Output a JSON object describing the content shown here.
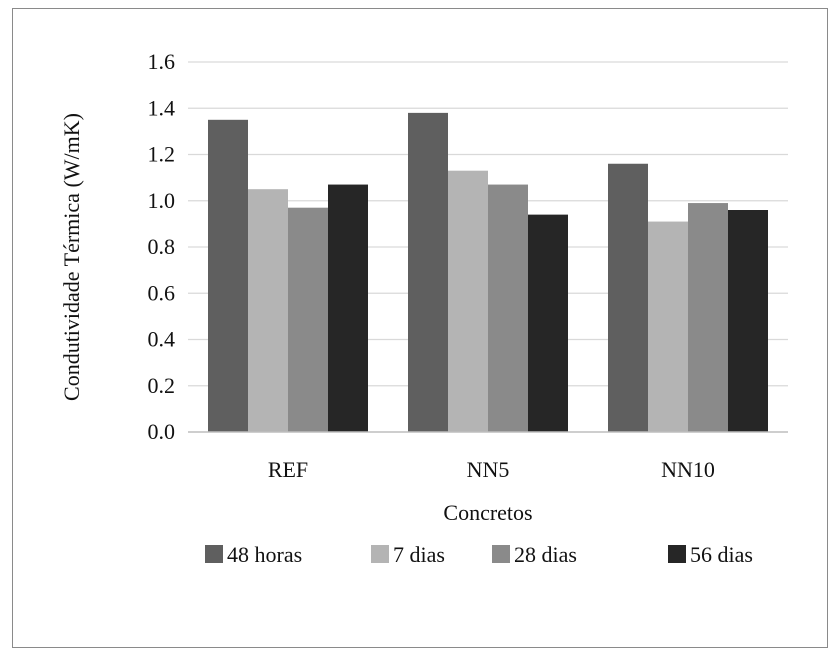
{
  "chart_data": {
    "type": "bar",
    "title": "",
    "xlabel": "Concretos",
    "ylabel": "Condutividade Térmica (W/mK)",
    "ylim": [
      0,
      1.6
    ],
    "yticks": [
      "0.0",
      "0.2",
      "0.4",
      "0.6",
      "0.8",
      "1.0",
      "1.2",
      "1.4",
      "1.6"
    ],
    "grid": true,
    "legend_position": "bottom",
    "categories": [
      "REF",
      "NN5",
      "NN10"
    ],
    "series": [
      {
        "name": "48 horas",
        "color": "#5f5f5f",
        "values": [
          1.35,
          1.38,
          1.16
        ]
      },
      {
        "name": "7 dias",
        "color": "#b4b4b4",
        "values": [
          1.05,
          1.13,
          0.91
        ]
      },
      {
        "name": "28 dias",
        "color": "#8a8a8a",
        "values": [
          0.97,
          1.07,
          0.99
        ]
      },
      {
        "name": "56 dias",
        "color": "#262626",
        "values": [
          1.07,
          0.94,
          0.96
        ]
      }
    ]
  }
}
